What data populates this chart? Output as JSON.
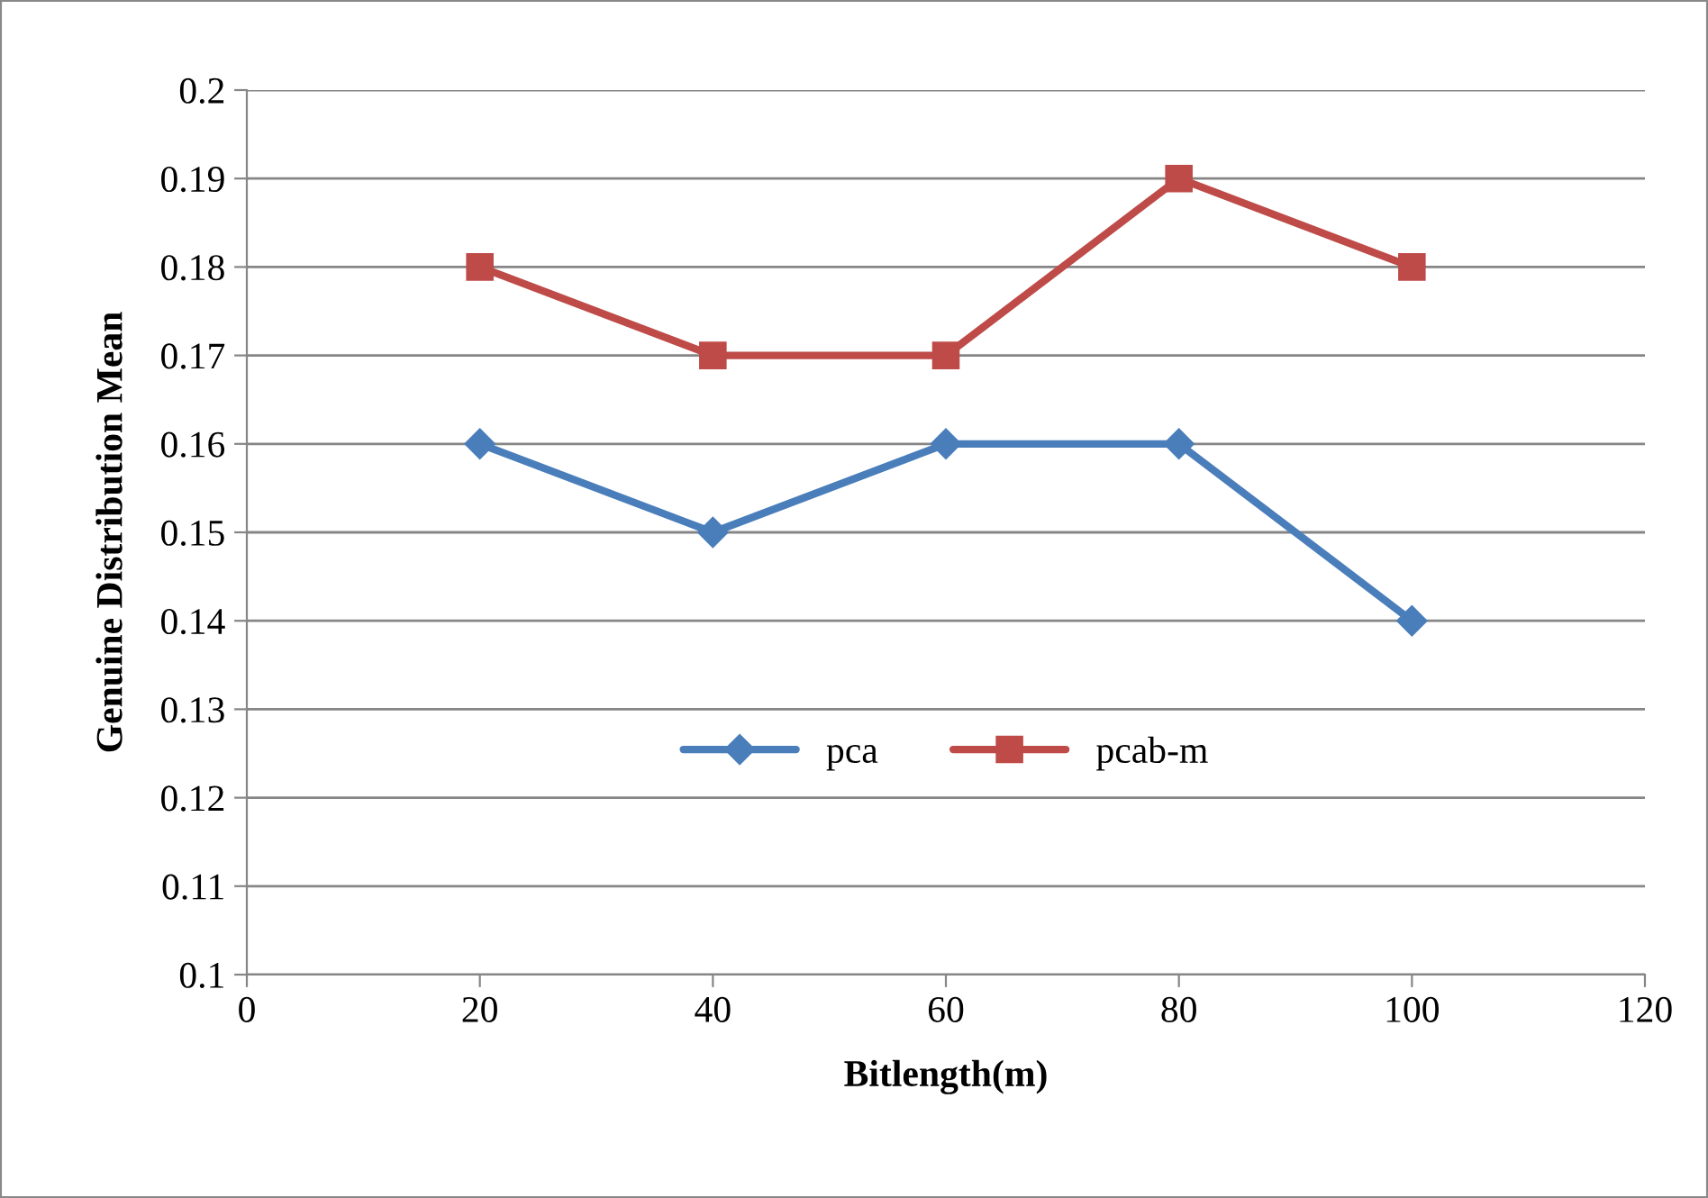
{
  "chart_data": {
    "type": "line",
    "xlabel": "Bitlength(m)",
    "ylabel": "Genuine Distribution Mean",
    "x": [
      20,
      40,
      60,
      80,
      100
    ],
    "series": [
      {
        "name": "pca",
        "color": "#4a7ebb",
        "values": [
          0.16,
          0.15,
          0.16,
          0.16,
          0.14
        ],
        "marker": "diamond"
      },
      {
        "name": "pcab-m",
        "color": "#be4b48",
        "values": [
          0.18,
          0.17,
          0.17,
          0.19,
          0.18
        ],
        "marker": "square"
      }
    ],
    "xlim": [
      0,
      120
    ],
    "xticks": [
      0,
      20,
      40,
      60,
      80,
      100,
      120
    ],
    "ylim": [
      0.1,
      0.2
    ],
    "yticks": [
      0.1,
      0.11,
      0.12,
      0.13,
      0.14,
      0.15,
      0.16,
      0.17,
      0.18,
      0.19,
      0.2
    ],
    "grid": "y",
    "legend": "center",
    "line_style": "solid"
  }
}
